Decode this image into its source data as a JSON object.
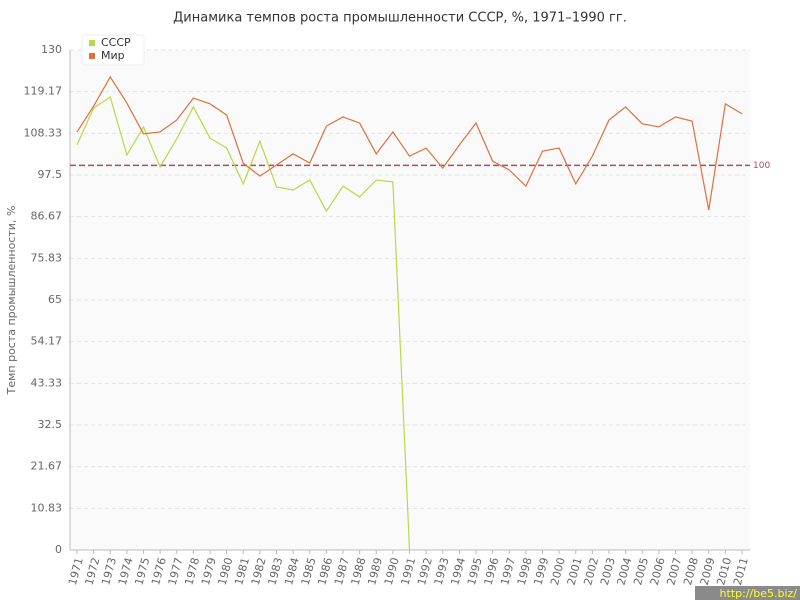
{
  "chart_data": {
    "type": "line",
    "title": "Динамика темпов роста промышленности СССР, %, 1971–1990 гг.",
    "y_label": "Темп роста промышленности, %",
    "categories": [
      "1971",
      "1972",
      "1973",
      "1974",
      "1975",
      "1976",
      "1977",
      "1978",
      "1979",
      "1980",
      "1981",
      "1982",
      "1983",
      "1984",
      "1985",
      "1986",
      "1987",
      "1988",
      "1989",
      "1990",
      "1991",
      "1992",
      "1993",
      "1994",
      "1995",
      "1996",
      "1997",
      "1998",
      "1999",
      "2000",
      "2001",
      "2002",
      "2003",
      "2004",
      "2005",
      "2006",
      "2007",
      "2008",
      "2009",
      "2010",
      "2011"
    ],
    "series": [
      {
        "name": "СССР",
        "color": "#b8d94a",
        "values": [
          105.3,
          114.9,
          117.8,
          102.7,
          110,
          99.6,
          106.9,
          115.2,
          107.1,
          104.5,
          95.2,
          106.3,
          94.4,
          93.6,
          96.2,
          88.1,
          94.6,
          91.8,
          96.2,
          95.7,
          0,
          null,
          null,
          null,
          null,
          null,
          null,
          null,
          null,
          null,
          null,
          null,
          null,
          null,
          null,
          null,
          null,
          null,
          null,
          null,
          null
        ]
      },
      {
        "name": "Мир",
        "color": "#e0703c",
        "values": [
          108.7,
          115.4,
          123,
          116.2,
          108.2,
          108.7,
          111.8,
          117.5,
          116,
          113.1,
          100.6,
          97.2,
          100.1,
          103,
          100.6,
          110.2,
          112.6,
          111,
          103,
          108.7,
          102.4,
          104.5,
          99.3,
          105.3,
          111,
          101.1,
          98.8,
          94.6,
          103.7,
          104.5,
          95.2,
          102.4,
          111.8,
          115.2,
          110.8,
          110,
          112.6,
          111.5,
          88.4,
          116,
          113.4
        ]
      }
    ],
    "ylim": [
      0,
      130
    ],
    "yticks": [
      0,
      10.83,
      21.67,
      32.5,
      43.33,
      54.17,
      65,
      75.83,
      86.67,
      97.5,
      108.33,
      119.17,
      130
    ],
    "grid": true,
    "reference_line": {
      "value": 100,
      "color": "#b5485a"
    },
    "legend": "top-left",
    "watermark": "http://be5.biz/"
  }
}
